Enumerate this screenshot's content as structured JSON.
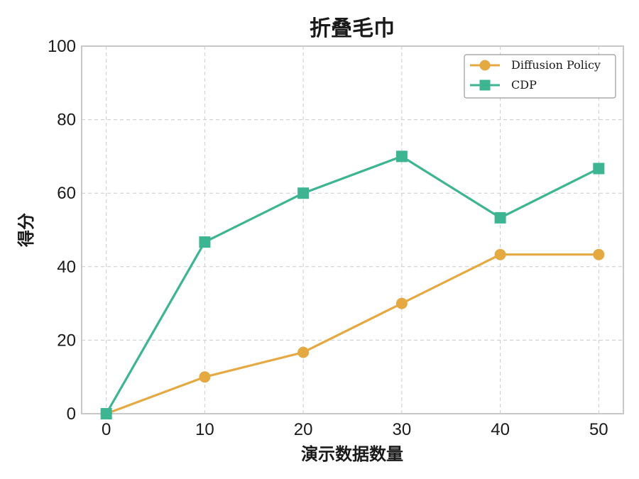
{
  "chart_data": {
    "type": "line",
    "title": "折叠毛巾",
    "xlabel": "演示数据数量",
    "ylabel": "得分",
    "x": [
      0,
      10,
      20,
      30,
      40,
      50
    ],
    "xlim": [
      -2.5,
      52.5
    ],
    "ylim": [
      0,
      100
    ],
    "xticks": [
      0,
      10,
      20,
      30,
      40,
      50
    ],
    "yticks": [
      0,
      20,
      40,
      60,
      80,
      100
    ],
    "grid": true,
    "legend_position": "top-right",
    "series": [
      {
        "name": "Diffusion Policy",
        "marker": "circle",
        "color": "#E5A942",
        "values": [
          0,
          10,
          16.7,
          30,
          43.3,
          43.3
        ]
      },
      {
        "name": "CDP",
        "marker": "square",
        "color": "#3DB592",
        "values": [
          0,
          46.7,
          60,
          70,
          53.3,
          66.7
        ]
      }
    ]
  }
}
